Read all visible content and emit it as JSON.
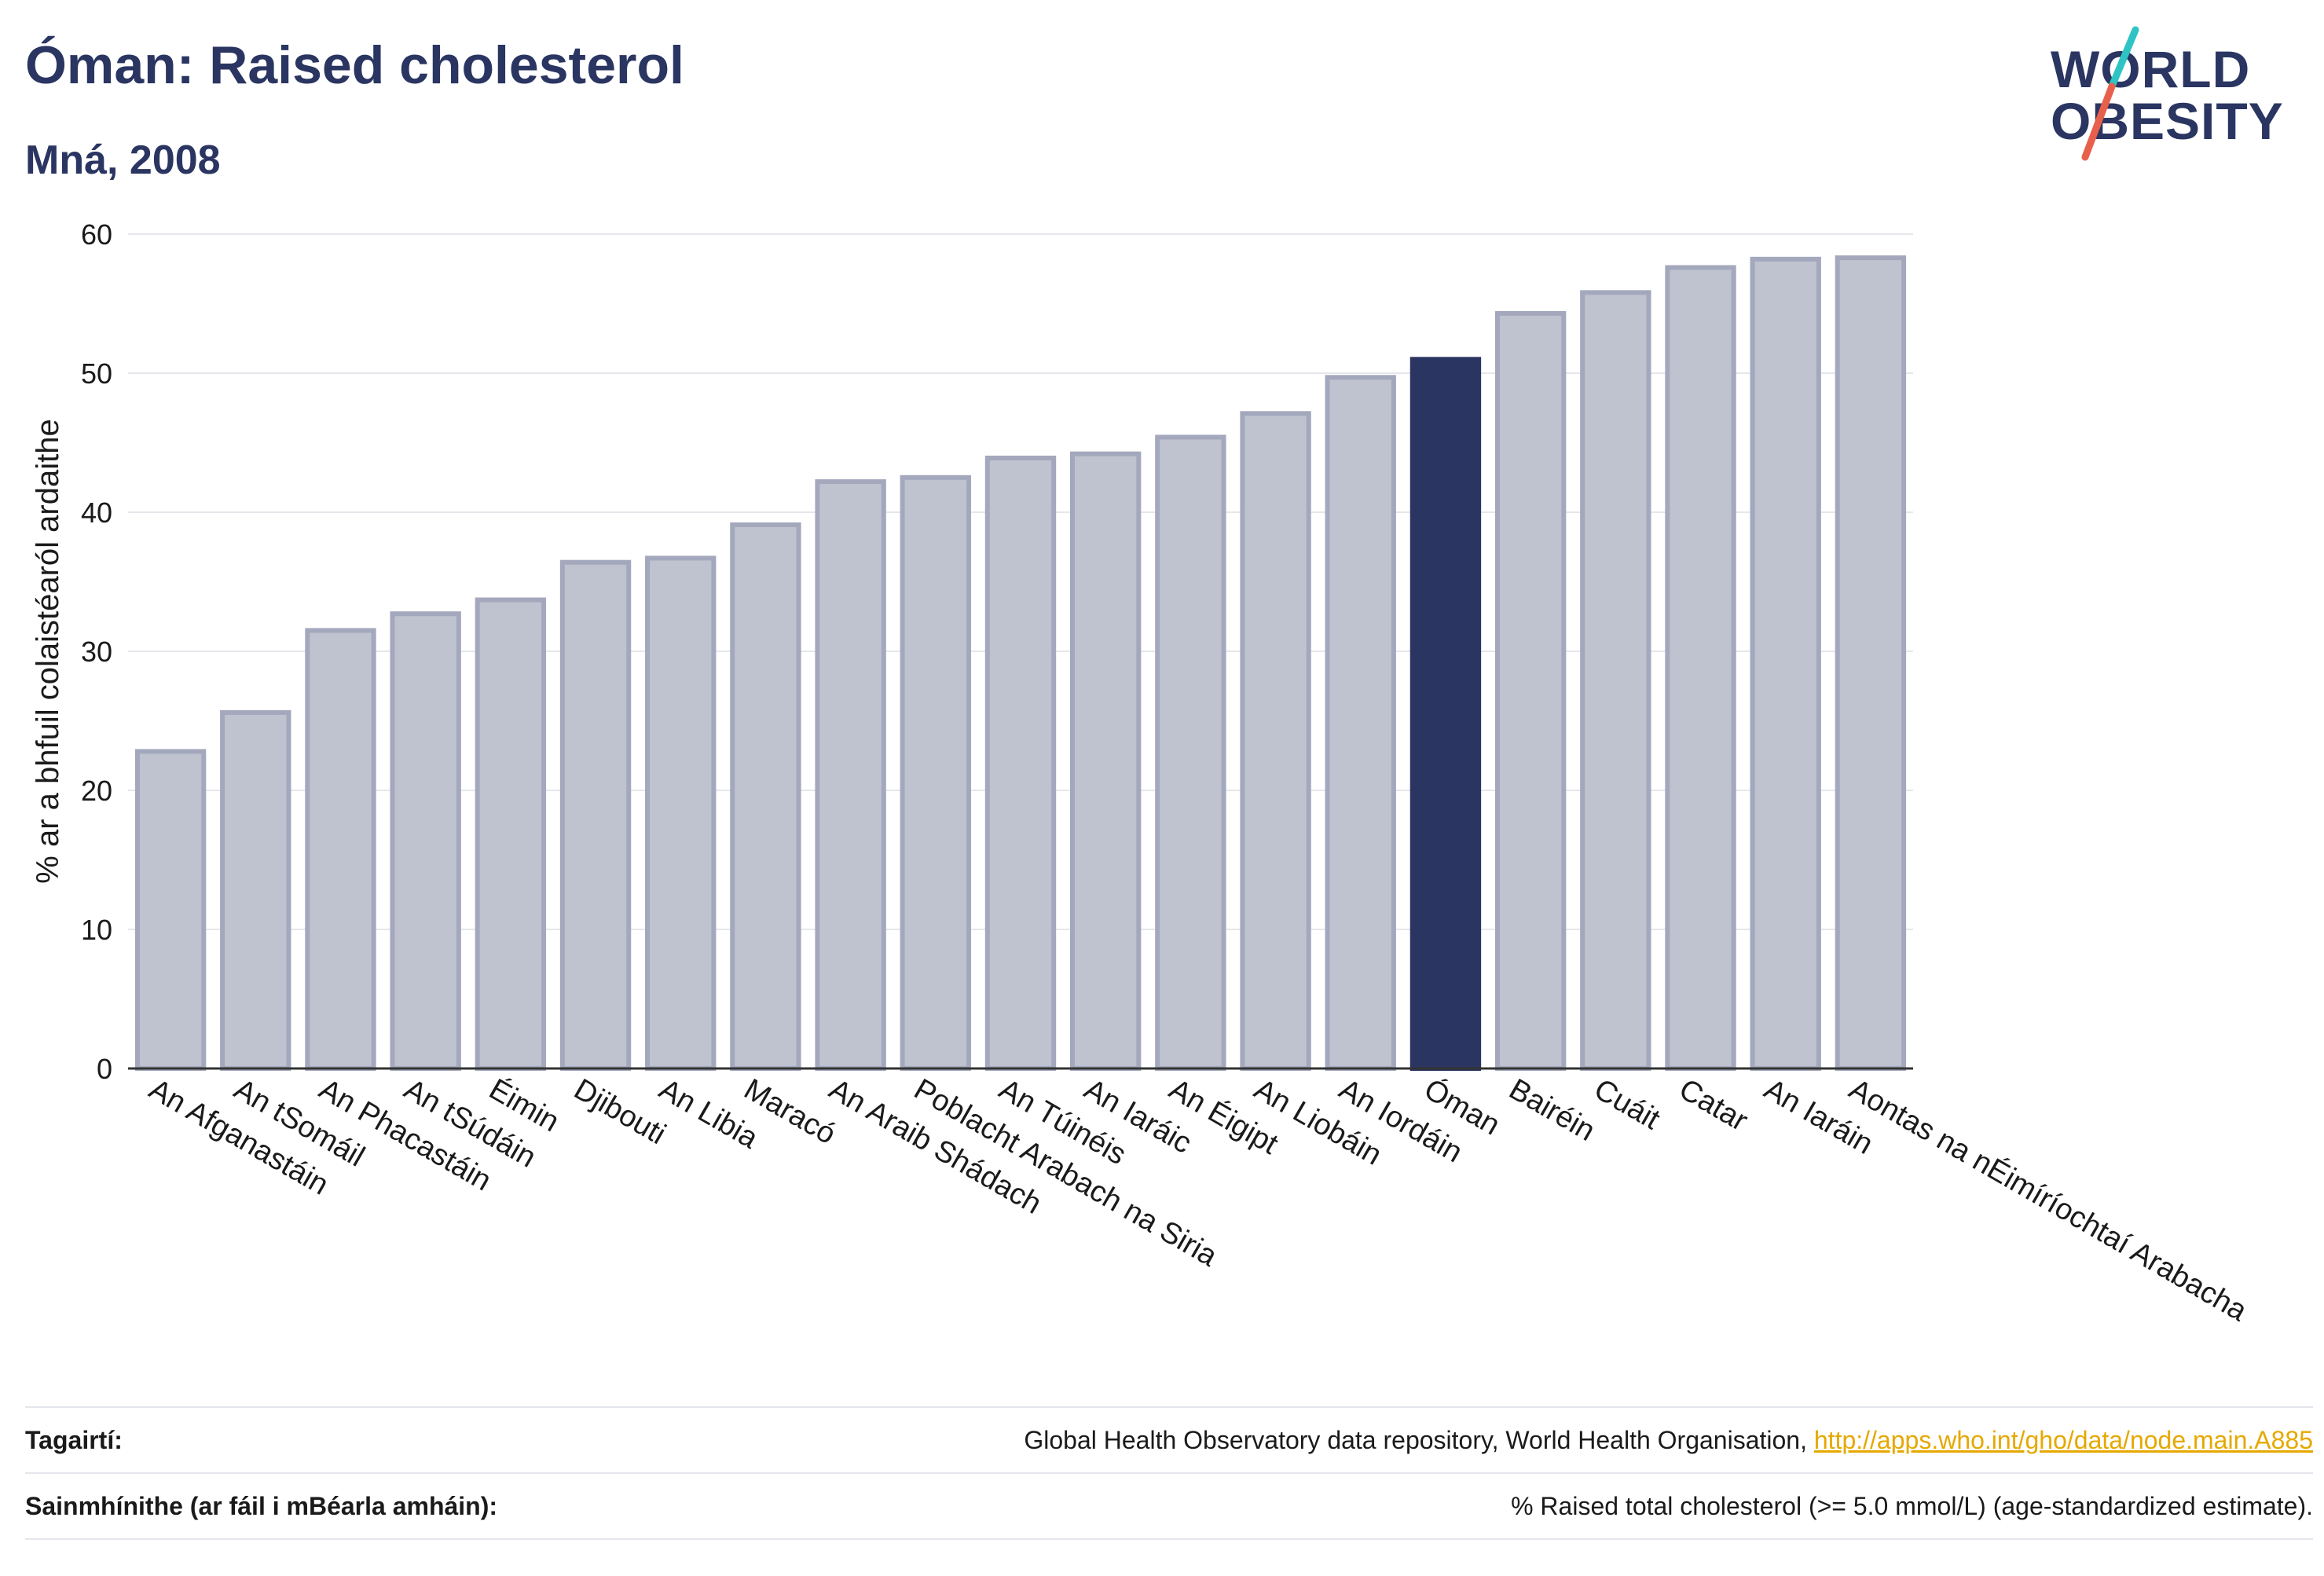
{
  "header": {
    "title": "Óman: Raised cholesterol",
    "subtitle": "Mná, 2008"
  },
  "logo": {
    "line1": "WORLD",
    "line2": "OBESITY",
    "colors": {
      "text": "#2a3561",
      "slash_top": "#2ec4c4",
      "slash_bottom": "#e8604c"
    }
  },
  "chart_data": {
    "type": "bar",
    "ylabel": "% ar a bhfuil colaistéaról ardaithe",
    "ylim": [
      0,
      60
    ],
    "yticks": [
      0,
      10,
      20,
      30,
      40,
      50,
      60
    ],
    "grid": true,
    "highlight": "Óman",
    "colors": {
      "bar": "#bfc2cf",
      "bar_stroke": "#a3a8bd",
      "highlight": "#2a3561"
    },
    "categories": [
      "An Afganastáin",
      "An tSomáil",
      "An Phacastáin",
      "An tSúdáin",
      "Éimin",
      "Djibouti",
      "An Libia",
      "Maracó",
      "An Araib Shádach",
      "Poblacht Arabach na Siria",
      "An Túinéis",
      "An Iaráic",
      "An Éigipt",
      "An Liobáin",
      "An Iordáin",
      "Óman",
      "Bairéin",
      "Cuáit",
      "Catar",
      "An Iaráin",
      "Aontas na nÉimíríochtaí Arabacha"
    ],
    "values": [
      22.8,
      25.6,
      31.5,
      32.7,
      33.7,
      36.4,
      36.7,
      39.1,
      42.2,
      42.5,
      43.9,
      44.2,
      45.4,
      47.1,
      49.7,
      51.0,
      54.3,
      55.8,
      57.6,
      58.2,
      58.3
    ]
  },
  "references": {
    "sources_label": "Tagairtí:",
    "sources_text": "Global Health Observatory data repository, World Health Organisation, ",
    "sources_link": "http://apps.who.int/gho/data/node.main.A885",
    "definitions_label": "Sainmhínithe (ar fáil i mBéarla amháin):",
    "definitions_text": "% Raised total cholesterol (>= 5.0 mmol/L) (age-standardized estimate)."
  }
}
